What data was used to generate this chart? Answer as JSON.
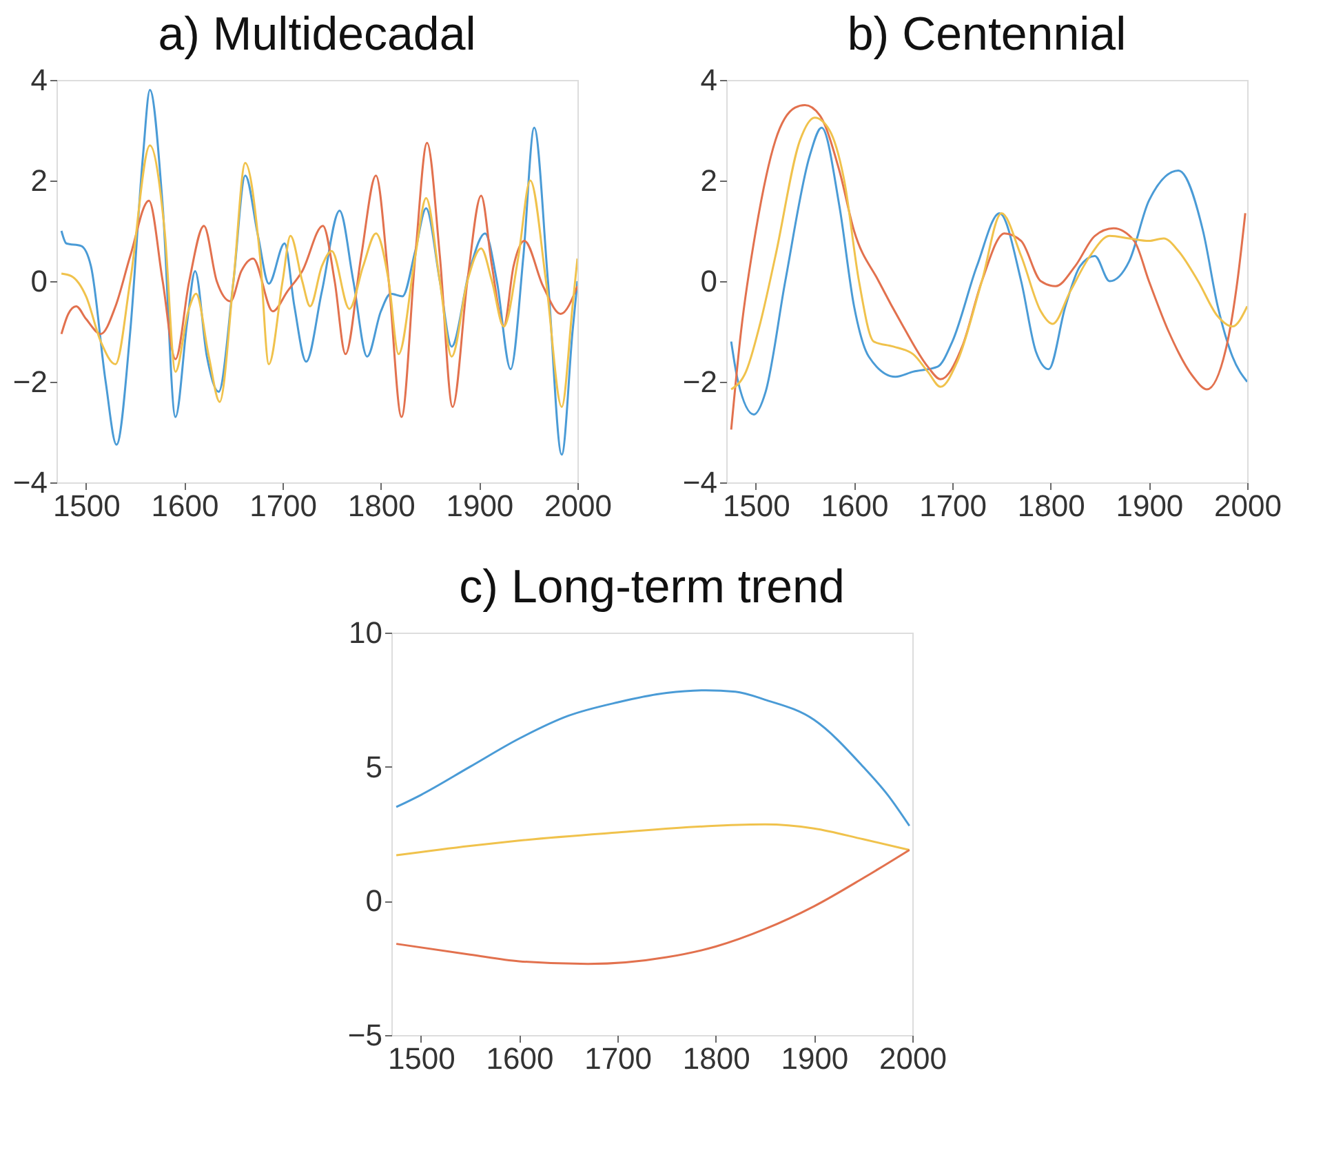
{
  "chart_data": [
    {
      "type": "line",
      "title": "a) Multidecadal",
      "xlim": [
        1470,
        2000
      ],
      "xticks": [
        1500,
        1600,
        1700,
        1800,
        1900,
        2000
      ],
      "ylim": [
        -4,
        4
      ],
      "yticks": [
        -4,
        -2,
        0,
        2,
        4
      ],
      "grid": false,
      "series": [
        {
          "color": "#4a9bd6",
          "x": [
            1475,
            1480,
            1495,
            1505,
            1520,
            1531,
            1545,
            1558,
            1565,
            1578,
            1591,
            1603,
            1611,
            1623,
            1635,
            1650,
            1662,
            1675,
            1686,
            1702,
            1712,
            1724,
            1740,
            1758,
            1772,
            1786,
            1800,
            1810,
            1822,
            1835,
            1846,
            1860,
            1872,
            1890,
            1906,
            1918,
            1932,
            1945,
            1956,
            1970,
            1984,
            1995,
            2000
          ],
          "values": [
            1.0,
            0.75,
            0.7,
            0.3,
            -2.0,
            -3.25,
            -1.0,
            2.5,
            3.8,
            1.5,
            -2.7,
            -0.8,
            0.2,
            -1.5,
            -2.2,
            0.0,
            2.1,
            0.9,
            -0.05,
            0.75,
            -0.5,
            -1.6,
            -0.2,
            1.4,
            0.0,
            -1.5,
            -0.6,
            -0.25,
            -0.3,
            0.6,
            1.45,
            0.0,
            -1.3,
            0.2,
            0.95,
            0.0,
            -1.75,
            0.5,
            3.05,
            0.0,
            -3.45,
            -1.0,
            0.0
          ]
        },
        {
          "color": "#e2714e",
          "x": [
            1475,
            1482,
            1490,
            1500,
            1515,
            1530,
            1545,
            1564,
            1578,
            1591,
            1605,
            1620,
            1633,
            1647,
            1658,
            1670,
            1690,
            1705,
            1720,
            1741,
            1753,
            1764,
            1780,
            1795,
            1808,
            1821,
            1835,
            1847,
            1860,
            1873,
            1888,
            1902,
            1913,
            1925,
            1935,
            1946,
            1965,
            1983,
            2000
          ],
          "values": [
            -1.05,
            -0.65,
            -0.5,
            -0.75,
            -1.05,
            -0.5,
            0.5,
            1.6,
            0.0,
            -1.55,
            0.0,
            1.1,
            0.0,
            -0.4,
            0.2,
            0.45,
            -0.6,
            -0.2,
            0.2,
            1.1,
            0.0,
            -1.45,
            0.5,
            2.1,
            0.0,
            -2.7,
            0.5,
            2.75,
            0.5,
            -2.5,
            0.0,
            1.7,
            0.3,
            -0.9,
            0.3,
            0.8,
            -0.1,
            -0.65,
            -0.1
          ]
        },
        {
          "color": "#f0c24c",
          "x": [
            1475,
            1485,
            1500,
            1515,
            1530,
            1545,
            1565,
            1580,
            1591,
            1604,
            1612,
            1625,
            1636,
            1650,
            1662,
            1677,
            1686,
            1700,
            1708,
            1720,
            1728,
            1740,
            1750,
            1768,
            1782,
            1795,
            1808,
            1818,
            1835,
            1846,
            1860,
            1872,
            1888,
            1902,
            1913,
            1925,
            1940,
            1952,
            1968,
            1984,
            1995,
            2000
          ],
          "values": [
            0.15,
            0.1,
            -0.3,
            -1.2,
            -1.65,
            0.0,
            2.7,
            1.0,
            -1.8,
            -0.6,
            -0.25,
            -1.5,
            -2.4,
            0.0,
            2.35,
            0.5,
            -1.65,
            0.0,
            0.9,
            0.0,
            -0.5,
            0.3,
            0.6,
            -0.55,
            0.3,
            0.95,
            0.0,
            -1.45,
            0.5,
            1.65,
            0.0,
            -1.5,
            0.0,
            0.65,
            0.0,
            -0.9,
            0.5,
            2.0,
            0.0,
            -2.5,
            -0.5,
            0.45
          ]
        }
      ]
    },
    {
      "type": "line",
      "title": "b) Centennial",
      "xlim": [
        1470,
        2000
      ],
      "xticks": [
        1500,
        1600,
        1700,
        1800,
        1900,
        2000
      ],
      "ylim": [
        -4,
        4
      ],
      "yticks": [
        -4,
        -2,
        0,
        2,
        4
      ],
      "grid": false,
      "series": [
        {
          "color": "#4a9bd6",
          "x": [
            1475,
            1482,
            1498,
            1510,
            1530,
            1555,
            1567,
            1585,
            1600,
            1615,
            1642,
            1660,
            1685,
            1700,
            1725,
            1748,
            1770,
            1785,
            1798,
            1815,
            1830,
            1845,
            1860,
            1880,
            1900,
            1930,
            1955,
            1970,
            1985,
            2000
          ],
          "values": [
            -1.2,
            -2.0,
            -2.65,
            -2.2,
            0.0,
            2.5,
            3.05,
            1.5,
            -0.5,
            -1.5,
            -1.9,
            -1.8,
            -1.7,
            -1.2,
            0.3,
            1.35,
            0.0,
            -1.4,
            -1.75,
            -0.5,
            0.3,
            0.5,
            0.0,
            0.4,
            1.6,
            2.2,
            1.0,
            -0.5,
            -1.5,
            -2.0
          ]
        },
        {
          "color": "#e2714e",
          "x": [
            1475,
            1485,
            1500,
            1520,
            1540,
            1550,
            1565,
            1585,
            1600,
            1625,
            1650,
            1675,
            1688,
            1710,
            1730,
            1753,
            1770,
            1790,
            1805,
            1825,
            1845,
            1864,
            1885,
            1900,
            1920,
            1945,
            1959,
            1980,
            1990,
            1998
          ],
          "values": [
            -2.95,
            -1.0,
            1.0,
            2.8,
            3.45,
            3.5,
            3.3,
            2.2,
            1.0,
            0.0,
            -0.9,
            -1.7,
            -1.95,
            -1.3,
            0.0,
            0.95,
            0.8,
            0.0,
            -0.1,
            0.3,
            0.9,
            1.05,
            0.8,
            0.0,
            -1.0,
            -1.9,
            -2.15,
            -1.2,
            0.0,
            1.35
          ]
        },
        {
          "color": "#f0c24c",
          "x": [
            1475,
            1490,
            1505,
            1520,
            1545,
            1560,
            1575,
            1590,
            1605,
            1620,
            1640,
            1660,
            1675,
            1688,
            1705,
            1730,
            1750,
            1770,
            1790,
            1802,
            1820,
            1840,
            1860,
            1880,
            1900,
            1915,
            1930,
            1950,
            1970,
            1985,
            2000
          ],
          "values": [
            -2.15,
            -1.8,
            -0.8,
            0.5,
            2.8,
            3.25,
            3.0,
            2.0,
            0.0,
            -1.2,
            -1.3,
            -1.45,
            -1.8,
            -2.1,
            -1.6,
            0.0,
            1.35,
            0.5,
            -0.6,
            -0.85,
            -0.2,
            0.5,
            0.9,
            0.85,
            0.8,
            0.85,
            0.6,
            0.0,
            -0.7,
            -0.9,
            -0.5
          ]
        }
      ]
    },
    {
      "type": "line",
      "title": "c) Long-term trend",
      "xlim": [
        1470,
        2000
      ],
      "xticks": [
        1500,
        1600,
        1700,
        1800,
        1900,
        2000
      ],
      "ylim": [
        -5,
        10
      ],
      "yticks": [
        -5,
        0,
        5,
        10
      ],
      "grid": false,
      "series": [
        {
          "color": "#4a9bd6",
          "x": [
            1475,
            1500,
            1550,
            1600,
            1650,
            1700,
            1750,
            1790,
            1820,
            1850,
            1900,
            1950,
            1975,
            1997
          ],
          "values": [
            3.5,
            3.95,
            5.0,
            6.05,
            6.9,
            7.4,
            7.75,
            7.85,
            7.8,
            7.5,
            6.75,
            5.0,
            3.95,
            2.8
          ]
        },
        {
          "color": "#f0c24c",
          "x": [
            1475,
            1550,
            1600,
            1700,
            1800,
            1850,
            1900,
            1950,
            1997
          ],
          "values": [
            1.7,
            2.05,
            2.25,
            2.55,
            2.8,
            2.85,
            2.7,
            2.3,
            1.9
          ]
        },
        {
          "color": "#e2714e",
          "x": [
            1475,
            1550,
            1600,
            1670,
            1750,
            1800,
            1850,
            1900,
            1950,
            1997
          ],
          "values": [
            -1.6,
            -2.0,
            -2.25,
            -2.35,
            -2.1,
            -1.7,
            -1.05,
            -0.2,
            0.85,
            1.9
          ]
        }
      ]
    }
  ]
}
